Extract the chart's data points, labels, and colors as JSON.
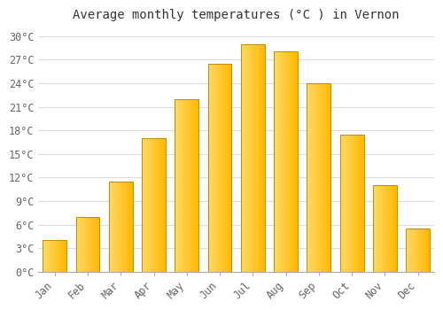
{
  "title": "Average monthly temperatures (°C ) in Vernon",
  "months": [
    "Jan",
    "Feb",
    "Mar",
    "Apr",
    "May",
    "Jun",
    "Jul",
    "Aug",
    "Sep",
    "Oct",
    "Nov",
    "Dec"
  ],
  "values": [
    4.0,
    7.0,
    11.5,
    17.0,
    22.0,
    26.5,
    29.0,
    28.0,
    24.0,
    17.5,
    11.0,
    5.5
  ],
  "bar_color_main": "#FFB800",
  "bar_color_light": "#FFD966",
  "bar_color_dark": "#E08000",
  "background_color": "#FFFFFF",
  "grid_color": "#DDDDDD",
  "ylim": [
    0,
    31
  ],
  "yticks": [
    0,
    3,
    6,
    9,
    12,
    15,
    18,
    21,
    24,
    27,
    30
  ],
  "title_fontsize": 10,
  "tick_fontsize": 8.5,
  "title_font": "monospace",
  "tick_font": "monospace",
  "bar_width": 0.72
}
